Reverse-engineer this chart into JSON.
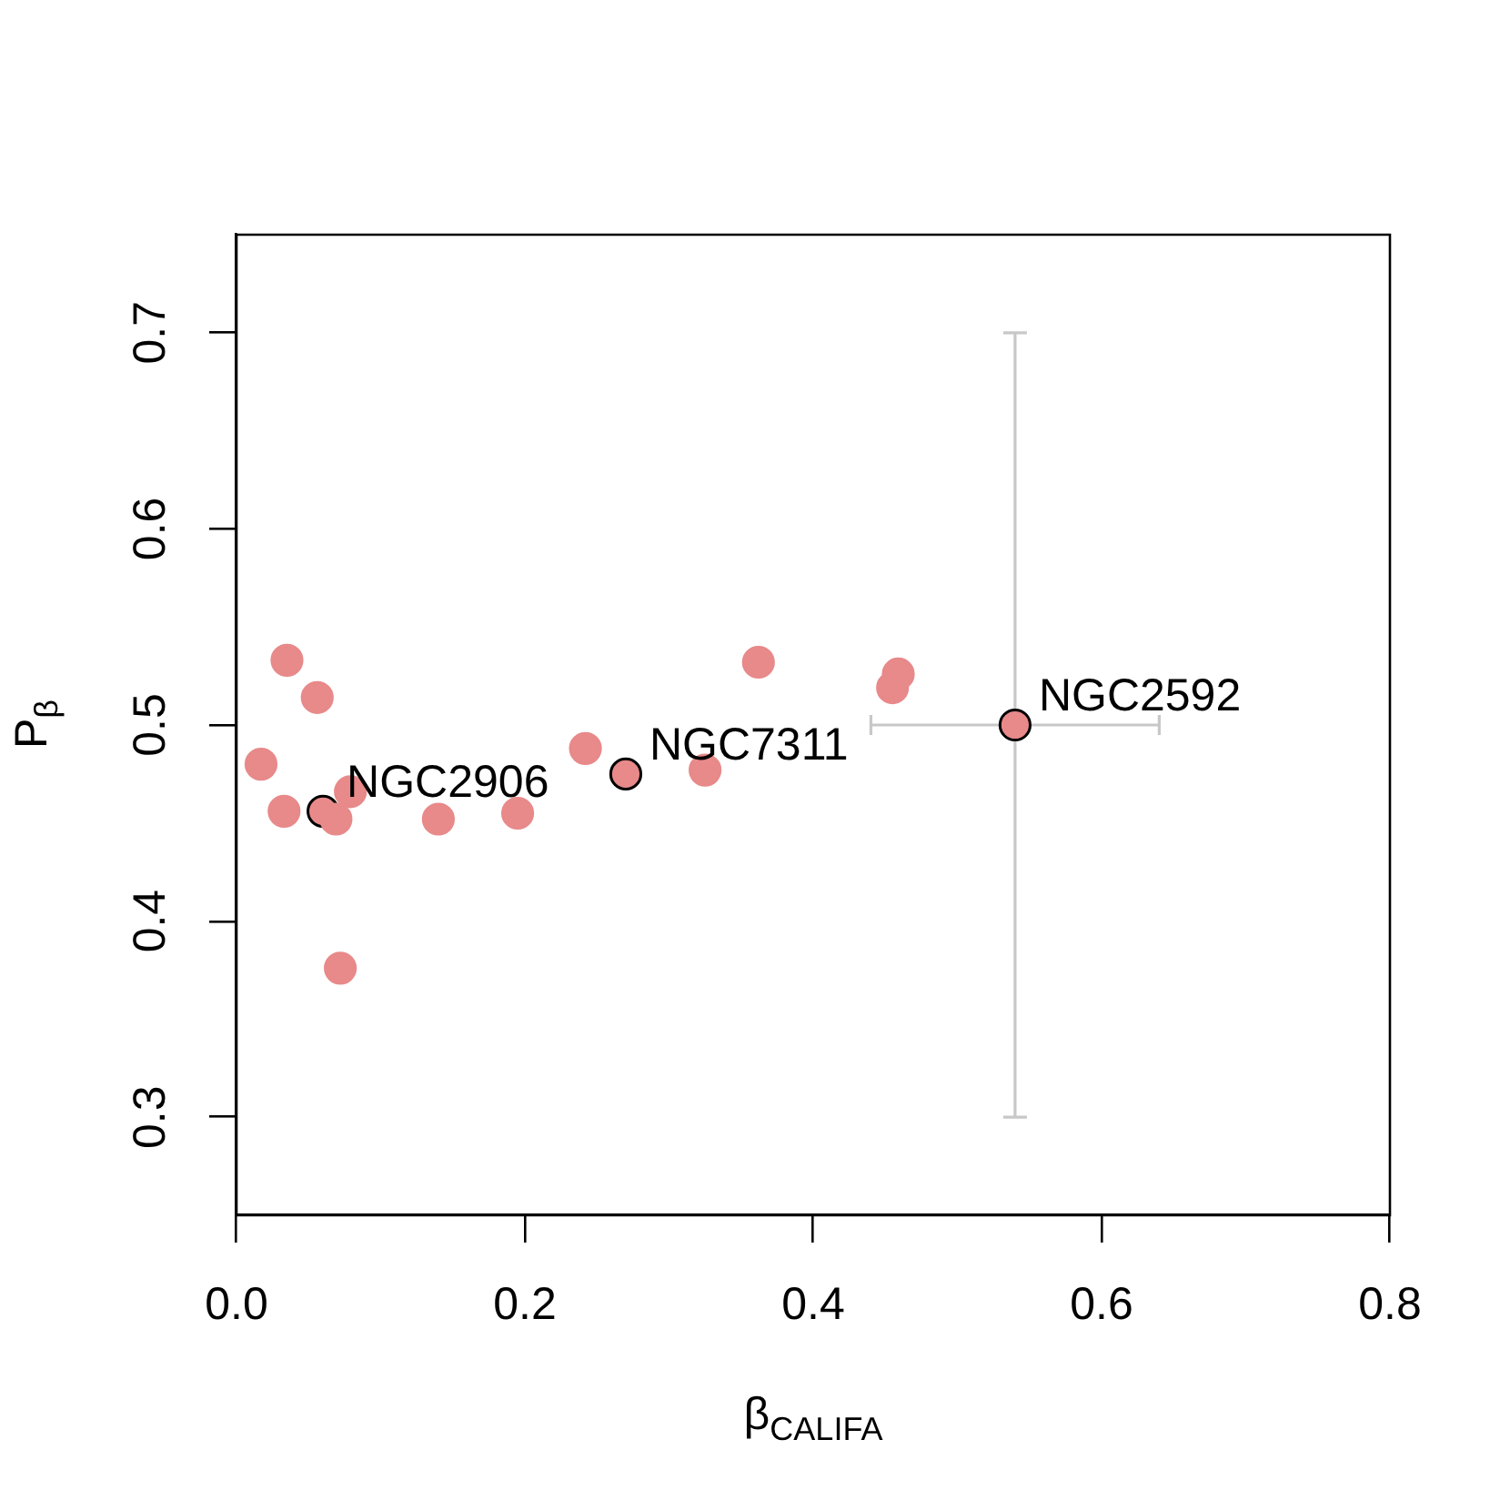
{
  "chart_data": {
    "type": "scatter",
    "xlabel": "β$_{CALIFA}$",
    "ylabel": "P$_{β}$",
    "xlim": [
      0,
      0.8
    ],
    "xticks": [
      {
        "value": 0,
        "label": "0.0"
      },
      0.2,
      0.4,
      0.6,
      0.8
    ],
    "ylim": [
      0.25,
      0.75
    ],
    "yticks": [
      0.3,
      0.4,
      0.5,
      0.6,
      0.7
    ],
    "marker": "circle",
    "series": [
      {
        "color": "#e8898a",
        "x": [
          0.017,
          0.033,
          0.035,
          0.056,
          0.069,
          0.072,
          0.079,
          0.14,
          0.195,
          0.242,
          0.325,
          0.362,
          0.455,
          0.459
        ],
        "values": [
          0.48,
          0.456,
          0.533,
          0.514,
          0.452,
          0.376,
          0.466,
          0.452,
          0.455,
          0.488,
          0.477,
          0.532,
          0.519,
          0.526
        ]
      },
      {
        "color": "#e8898a",
        "x": [
          0.06,
          0.27,
          0.54
        ],
        "values": [
          0.456,
          0.475,
          0.5
        ],
        "errors": [
          null,
          null,
          0.2
        ],
        "xerrors": [
          null,
          null,
          0.1
        ]
      }
    ],
    "annotations": [
      {
        "text": "NGC2906",
        "x": 0.06,
        "y": 0.456
      },
      {
        "text": "NGC7311",
        "x": 0.27,
        "y": 0.475
      },
      {
        "text": "NGC2592",
        "x": 0.54,
        "y": 0.5
      }
    ]
  }
}
